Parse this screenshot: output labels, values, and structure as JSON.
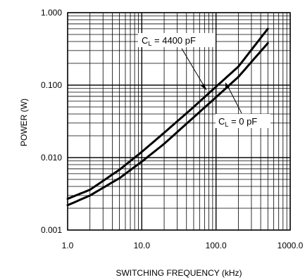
{
  "chart_data": {
    "type": "line",
    "xlabel": "SWITCHING FREQUENCY (kHz)",
    "ylabel": "POWER (W)",
    "xscale": "log",
    "yscale": "log",
    "xlim": [
      1,
      1000
    ],
    "ylim": [
      0.001,
      1
    ],
    "grid": true,
    "x_tick_labels": [
      "1.0",
      "10.0",
      "100.0",
      "1000.0"
    ],
    "y_tick_labels": [
      "0.001",
      "0.010",
      "0.100",
      "1.000"
    ],
    "series": [
      {
        "name": "C_L = 4400 pF",
        "label_main": "C",
        "label_sub": "L",
        "label_rest": " = 4400 pF",
        "x": [
          1,
          2,
          5,
          10,
          20,
          50,
          100,
          200,
          500
        ],
        "y": [
          0.0027,
          0.0036,
          0.0068,
          0.012,
          0.022,
          0.05,
          0.095,
          0.18,
          0.6
        ]
      },
      {
        "name": "C_L = 0 pF",
        "label_main": "C",
        "label_sub": "L",
        "label_rest": " = 0 pF",
        "x": [
          1,
          2,
          5,
          10,
          20,
          50,
          100,
          200,
          500
        ],
        "y": [
          0.0022,
          0.003,
          0.0052,
          0.0088,
          0.0155,
          0.036,
          0.068,
          0.13,
          0.38
        ]
      }
    ]
  }
}
